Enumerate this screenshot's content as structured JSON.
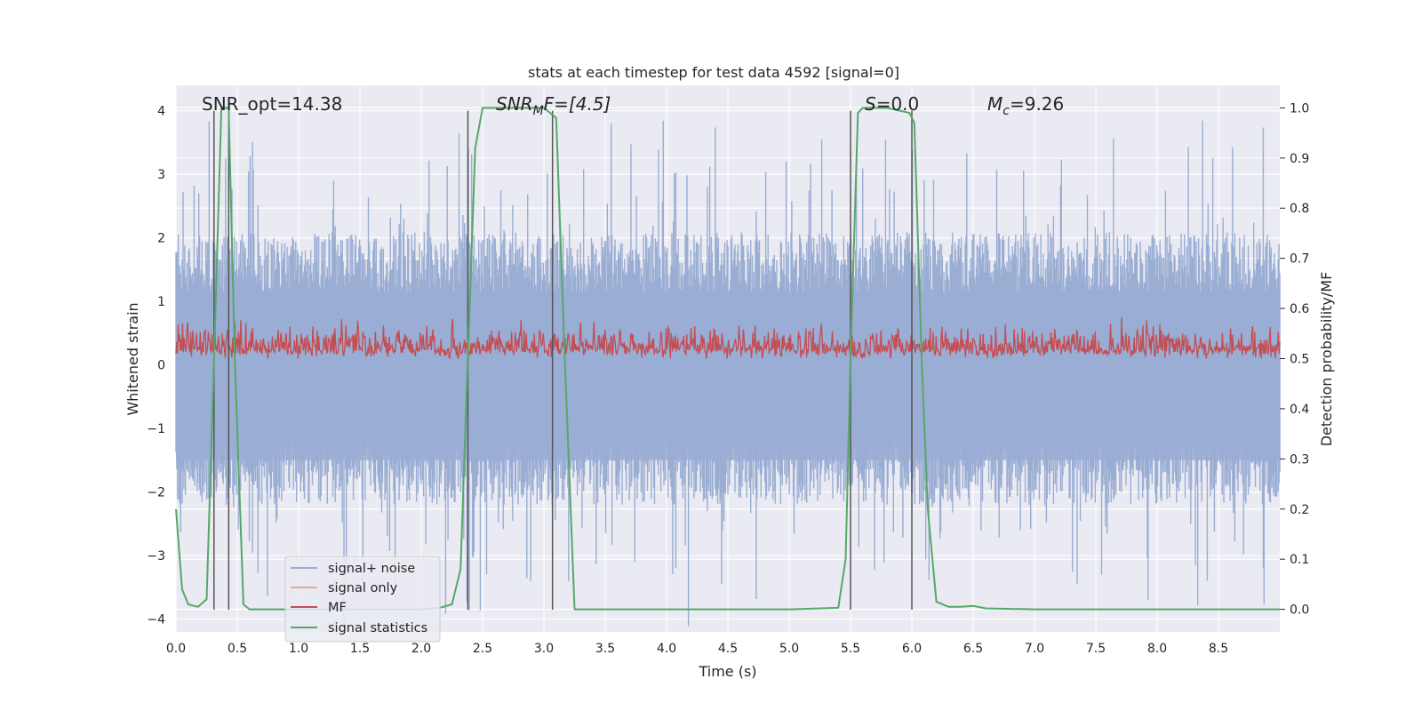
{
  "chart_data": {
    "type": "line",
    "title": "stats at each timestep for test data 4592 [signal=0]",
    "xlabel": "Time (s)",
    "ylabel_left": "Whitened strain",
    "ylabel_right": "Detection probability/MF",
    "xlim": [
      0.0,
      9.0
    ],
    "ylim_left": [
      -4.2,
      4.4
    ],
    "ylim_right": [
      -0.045,
      1.045
    ],
    "x_ticks": [
      0.0,
      0.5,
      1.0,
      1.5,
      2.0,
      2.5,
      3.0,
      3.5,
      4.0,
      4.5,
      5.0,
      5.5,
      6.0,
      6.5,
      7.0,
      7.5,
      8.0,
      8.5
    ],
    "y_ticks_left": [
      4,
      3,
      2,
      1,
      0,
      -1,
      -2,
      -3,
      -4
    ],
    "y_ticks_right": [
      1.0,
      0.9,
      0.8,
      0.7,
      0.6,
      0.5,
      0.4,
      0.3,
      0.2,
      0.1,
      0.0
    ],
    "x_tick_labels": [
      "0.0",
      "0.5",
      "1.0",
      "1.5",
      "2.0",
      "2.5",
      "3.0",
      "3.5",
      "4.0",
      "4.5",
      "5.0",
      "5.5",
      "6.0",
      "6.5",
      "7.0",
      "7.5",
      "8.0",
      "8.5"
    ],
    "y_tick_labels_left": [
      "4",
      "3",
      "2",
      "1",
      "0",
      "−1",
      "−2",
      "−3",
      "−4"
    ],
    "y_tick_labels_right": [
      "1.0",
      "0.9",
      "0.8",
      "0.7",
      "0.6",
      "0.5",
      "0.4",
      "0.3",
      "0.2",
      "0.1",
      "0.0"
    ],
    "grid": true,
    "legend_position": "lower-left",
    "annotations": {
      "snr_opt": "SNR_opt=14.38",
      "snr_mf_main": "SNR",
      "snr_mf_sub": "M",
      "snr_mf_rest": "F=[4.5]",
      "s_main": "S",
      "s_rest": "=0.0",
      "mc_main": "M",
      "mc_sub": "c",
      "mc_rest": "=9.26"
    },
    "vertical_lines": [
      0.31,
      0.43,
      2.38,
      3.07,
      5.5,
      6.0
    ],
    "series": [
      {
        "name": "signal+ noise",
        "axis": "left",
        "color": "#9aadd3",
        "description_envelope": {
          "upper_typical": 1.9,
          "upper_peak": 3.8,
          "lower_typical": -2.0,
          "lower_peak": -4.0
        }
      },
      {
        "name": "signal only",
        "axis": "left",
        "color": "#e8a88a",
        "values": []
      },
      {
        "name": "MF",
        "axis": "right",
        "color": "#c44e52",
        "mean": 0.52,
        "range": [
          0.5,
          0.6
        ]
      },
      {
        "name": "signal statistics",
        "axis": "right",
        "color": "#55a868",
        "x": [
          0.0,
          0.05,
          0.1,
          0.18,
          0.25,
          0.31,
          0.37,
          0.43,
          0.48,
          0.55,
          0.6,
          1.0,
          1.5,
          2.0,
          2.15,
          2.25,
          2.32,
          2.38,
          2.44,
          2.5,
          2.6,
          2.8,
          3.0,
          3.05,
          3.1,
          3.17,
          3.25,
          3.5,
          4.0,
          4.5,
          5.0,
          5.4,
          5.46,
          5.5,
          5.56,
          5.6,
          5.8,
          5.98,
          6.02,
          6.08,
          6.13,
          6.2,
          6.3,
          6.4,
          6.5,
          6.6,
          7.0,
          8.0,
          9.0
        ],
        "y": [
          0.2,
          0.04,
          0.01,
          0.005,
          0.02,
          0.5,
          1.0,
          1.0,
          0.5,
          0.01,
          0.0,
          0.0,
          0.0,
          0.0,
          0.003,
          0.01,
          0.08,
          0.5,
          0.92,
          1.0,
          1.0,
          1.0,
          1.0,
          0.99,
          0.98,
          0.5,
          0.0,
          0.0,
          0.0,
          0.0,
          0.0,
          0.003,
          0.1,
          0.5,
          0.99,
          1.0,
          1.0,
          0.99,
          0.97,
          0.5,
          0.2,
          0.015,
          0.005,
          0.005,
          0.007,
          0.002,
          0.0,
          0.0,
          0.0
        ]
      }
    ]
  },
  "legend": {
    "items": [
      "signal+ noise",
      "signal only",
      "MF",
      "signal statistics"
    ]
  }
}
